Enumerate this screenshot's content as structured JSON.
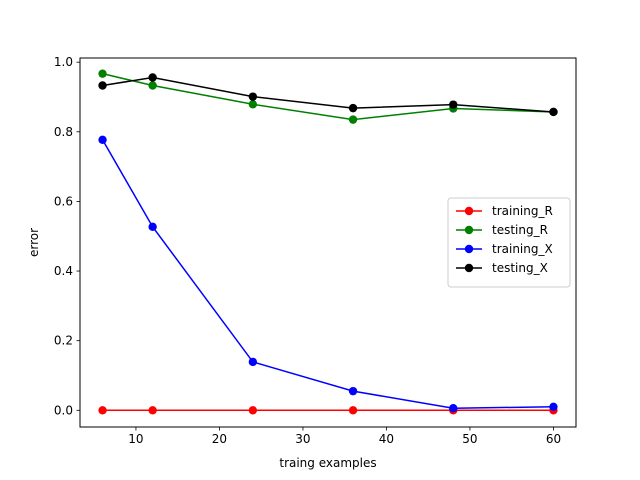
{
  "chart_data": {
    "type": "line",
    "title": "",
    "xlabel": "traing examples",
    "ylabel": "error",
    "xlim": [
      3.3,
      62.7
    ],
    "ylim": [
      -0.048,
      1.012
    ],
    "xticks": [
      10,
      20,
      30,
      40,
      50,
      60
    ],
    "yticks": [
      0.0,
      0.2,
      0.4,
      0.6,
      0.8,
      1.0
    ],
    "xtick_labels": [
      "10",
      "20",
      "30",
      "40",
      "50",
      "60"
    ],
    "ytick_labels": [
      "0.0",
      "0.2",
      "0.4",
      "0.6",
      "0.8",
      "1.0"
    ],
    "grid": false,
    "legend_position": "center-right",
    "x": [
      6,
      12,
      24,
      36,
      48,
      60
    ],
    "series": [
      {
        "name": "training_R",
        "color": "#ff0000",
        "values": [
          0.0,
          0.0,
          0.0,
          0.0,
          0.0,
          0.0
        ]
      },
      {
        "name": "testing_R",
        "color": "#008000",
        "values": [
          0.967,
          0.933,
          0.879,
          0.835,
          0.867,
          0.857
        ]
      },
      {
        "name": "training_X",
        "color": "#0000ff",
        "values": [
          0.777,
          0.527,
          0.139,
          0.055,
          0.006,
          0.01
        ]
      },
      {
        "name": "testing_X",
        "color": "#000000",
        "values": [
          0.933,
          0.956,
          0.901,
          0.868,
          0.878,
          0.857
        ]
      }
    ]
  }
}
